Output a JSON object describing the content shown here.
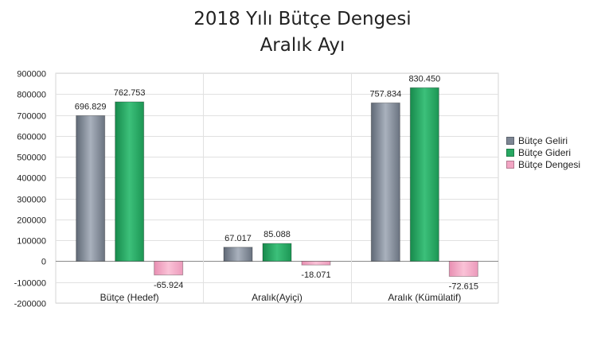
{
  "chart_data": {
    "type": "bar",
    "title": "2018 Yılı Bütçe Dengesi",
    "subtitle": "Aralık Ayı",
    "categories": [
      "Bütçe (Hedef)",
      "Aralık(Ayiçi)",
      "Aralık (Kümülatif)"
    ],
    "series": [
      {
        "name": "Bütçe Geliri",
        "color": "#7d8694",
        "values": [
          696829,
          67017,
          757834
        ],
        "labels": [
          "696.829",
          "67.017",
          "757.834"
        ]
      },
      {
        "name": "Bütçe Gideri",
        "color": "#27a862",
        "values": [
          762753,
          85088,
          830450
        ],
        "labels": [
          "762.753",
          "85.088",
          "830.450"
        ]
      },
      {
        "name": "Bütçe Dengesi",
        "color": "#f2a5c3",
        "values": [
          -65924,
          -18071,
          -72615
        ],
        "labels": [
          "-65.924",
          "-18.071",
          "-72.615"
        ]
      }
    ],
    "ylim": [
      -200000,
      900000
    ],
    "yticks": [
      "-200000",
      "-100000",
      "0",
      "100000",
      "200000",
      "300000",
      "400000",
      "500000",
      "600000",
      "700000",
      "800000",
      "900000"
    ],
    "grid": true,
    "legend_position": "right"
  }
}
